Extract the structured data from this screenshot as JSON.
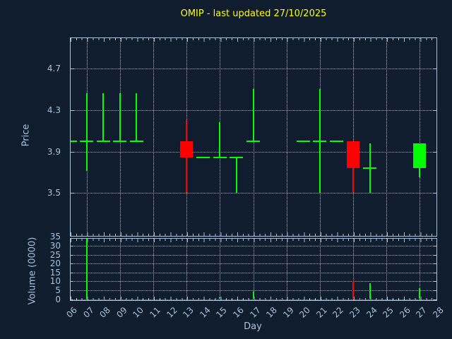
{
  "title": "OMIP - last updated 27/10/2025",
  "chart_data": {
    "type": "candlestick+volume",
    "title": "OMIP - last updated 27/10/2025",
    "xlabel": "Day",
    "x_days": [
      6,
      7,
      8,
      9,
      10,
      11,
      12,
      13,
      14,
      15,
      16,
      17,
      18,
      19,
      20,
      21,
      22,
      23,
      24,
      25,
      26,
      27,
      28
    ],
    "x_tick_labels": [
      "06",
      "07",
      "08",
      "09",
      "10",
      "11",
      "12",
      "13",
      "14",
      "15",
      "16",
      "17",
      "18",
      "19",
      "20",
      "21",
      "22",
      "23",
      "24",
      "25",
      "26",
      "27",
      "28"
    ],
    "xlim": [
      6,
      28
    ],
    "grid": "dotted",
    "grid_days": [
      7,
      9,
      11,
      13,
      15,
      17,
      19,
      21,
      23,
      25,
      27
    ],
    "price_panel": {
      "ylabel": "Price",
      "yticks": [
        3.5,
        3.9,
        4.3,
        4.7
      ],
      "ylim": [
        3.09,
        5.0
      ],
      "candles": [
        {
          "day": 6,
          "open": 4.0,
          "high": 4.0,
          "low": 4.0,
          "close": 4.0,
          "dir": "flat"
        },
        {
          "day": 7,
          "open": 4.0,
          "high": 4.46,
          "low": 3.71,
          "close": 4.0,
          "dir": "flat"
        },
        {
          "day": 8,
          "open": 4.0,
          "high": 4.46,
          "low": 4.0,
          "close": 4.0,
          "dir": "flat"
        },
        {
          "day": 9,
          "open": 4.0,
          "high": 4.46,
          "low": 4.0,
          "close": 4.0,
          "dir": "flat"
        },
        {
          "day": 10,
          "open": 4.0,
          "high": 4.46,
          "low": 4.0,
          "close": 4.0,
          "dir": "flat"
        },
        {
          "day": 13,
          "open": 4.0,
          "high": 4.2,
          "low": 3.5,
          "close": 3.84,
          "dir": "down"
        },
        {
          "day": 14,
          "open": 3.84,
          "high": 3.84,
          "low": 3.84,
          "close": 3.84,
          "dir": "flat"
        },
        {
          "day": 15,
          "open": 3.84,
          "high": 4.18,
          "low": 3.84,
          "close": 3.84,
          "dir": "flat"
        },
        {
          "day": 16,
          "open": 3.84,
          "high": 3.84,
          "low": 3.5,
          "close": 3.84,
          "dir": "flat"
        },
        {
          "day": 17,
          "open": 4.0,
          "high": 4.5,
          "low": 4.0,
          "close": 4.0,
          "dir": "flat"
        },
        {
          "day": 20,
          "open": 4.0,
          "high": 4.0,
          "low": 4.0,
          "close": 4.0,
          "dir": "flat"
        },
        {
          "day": 21,
          "open": 4.0,
          "high": 4.5,
          "low": 3.5,
          "close": 4.0,
          "dir": "flat"
        },
        {
          "day": 22,
          "open": 4.0,
          "high": 4.0,
          "low": 4.0,
          "close": 4.0,
          "dir": "flat"
        },
        {
          "day": 23,
          "open": 4.0,
          "high": 4.0,
          "low": 3.5,
          "close": 3.74,
          "dir": "down"
        },
        {
          "day": 24,
          "open": 3.74,
          "high": 3.98,
          "low": 3.5,
          "close": 3.74,
          "dir": "flat"
        },
        {
          "day": 27,
          "open": 3.74,
          "high": 3.98,
          "low": 3.65,
          "close": 3.98,
          "dir": "up"
        }
      ]
    },
    "volume_panel": {
      "ylabel": "Volume (0000)",
      "yticks": [
        0,
        5,
        10,
        15,
        20,
        25,
        30,
        35
      ],
      "ylim": [
        0,
        35.3
      ],
      "bars": [
        {
          "day": 7,
          "value": 34,
          "dir": "up"
        },
        {
          "day": 15,
          "value": 1,
          "dir": "up"
        },
        {
          "day": 17,
          "value": 4,
          "dir": "up"
        },
        {
          "day": 23,
          "value": 10,
          "dir": "down"
        },
        {
          "day": 24,
          "value": 9,
          "dir": "up"
        },
        {
          "day": 27,
          "value": 6,
          "dir": "up"
        }
      ]
    },
    "colors": {
      "up": "#00ff00",
      "down": "#ff0000",
      "background": "#0f1d2e",
      "axis": "#a7c0dc",
      "grid": "#d5dfe9",
      "title": "#ffff00"
    }
  }
}
